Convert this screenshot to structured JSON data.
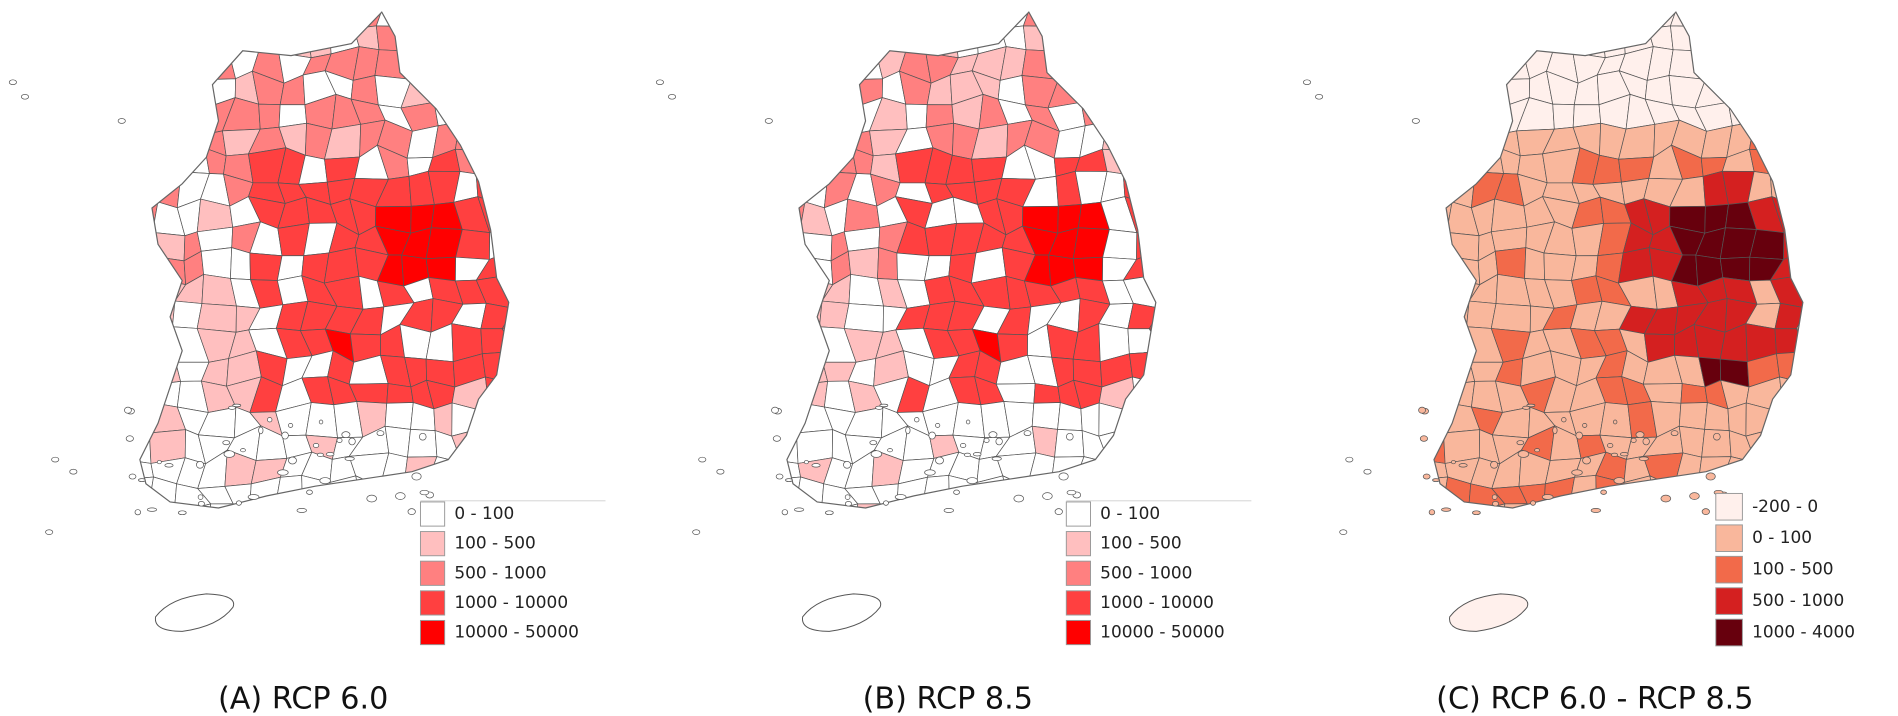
{
  "panels": [
    {
      "caption": "(A) RCP 6.0",
      "legend": [
        {
          "label": "0 - 100",
          "color": "#ffffff"
        },
        {
          "label": "100 - 500",
          "color": "#ffbfbf"
        },
        {
          "label": "500 - 1000",
          "color": "#ff8080"
        },
        {
          "label": "1000 - 10000",
          "color": "#ff4040"
        },
        {
          "label": "10000 - 50000",
          "color": "#ff0000"
        }
      ]
    },
    {
      "caption": "(B) RCP 8.5",
      "legend": [
        {
          "label": "0 - 100",
          "color": "#ffffff"
        },
        {
          "label": "100 - 500",
          "color": "#ffbfbf"
        },
        {
          "label": "500 - 1000",
          "color": "#ff8080"
        },
        {
          "label": "1000 - 10000",
          "color": "#ff4040"
        },
        {
          "label": "10000 - 50000",
          "color": "#ff0000"
        }
      ]
    },
    {
      "caption": "(C) RCP 6.0 - RCP 8.5",
      "legend": [
        {
          "label": "-200 - 0",
          "color": "#fff0ec"
        },
        {
          "label": "0 - 100",
          "color": "#f9b79c"
        },
        {
          "label": "100 - 500",
          "color": "#f26a4a"
        },
        {
          "label": "500 - 1000",
          "color": "#d42020"
        },
        {
          "label": "1000 - 4000",
          "color": "#67000d"
        }
      ]
    }
  ]
}
